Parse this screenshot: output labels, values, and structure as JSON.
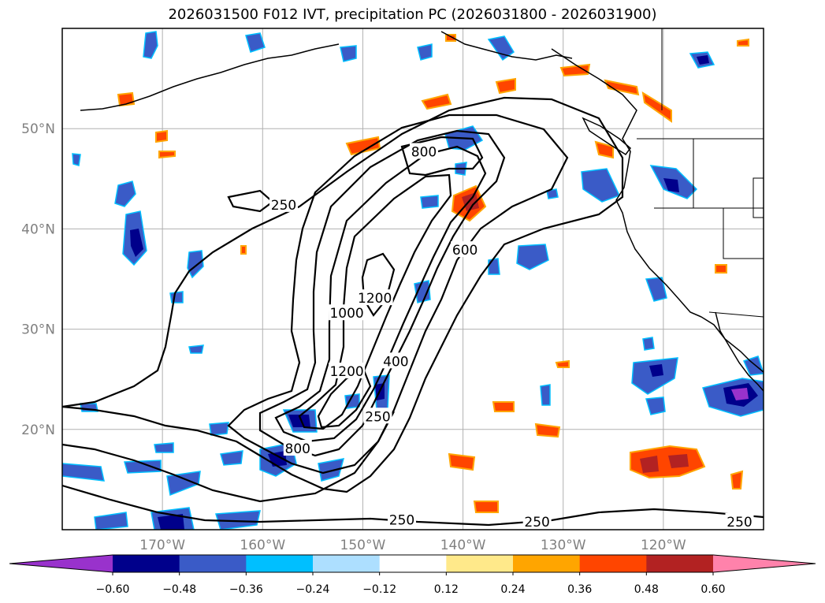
{
  "title": "2026031500 F012 IVT, precipitation PC (2026031800 - 2026031900)",
  "chart_data": {
    "type": "map",
    "title": "2026031500 F012 IVT, precipitation PC (2026031800 - 2026031900)",
    "lon_range": [
      -180,
      -110
    ],
    "lat_range": [
      10,
      60
    ],
    "lon_ticks": [
      {
        "value": -170,
        "label": "170°W"
      },
      {
        "value": -160,
        "label": "160°W"
      },
      {
        "value": -150,
        "label": "150°W"
      },
      {
        "value": -140,
        "label": "140°W"
      },
      {
        "value": -130,
        "label": "130°W"
      },
      {
        "value": -120,
        "label": "120°W"
      }
    ],
    "lat_ticks": [
      {
        "value": 20,
        "label": "20°N"
      },
      {
        "value": 30,
        "label": "30°N"
      },
      {
        "value": 40,
        "label": "40°N"
      },
      {
        "value": 50,
        "label": "50°N"
      }
    ],
    "grid": true,
    "ivt_contour_levels": [
      250,
      400,
      600,
      800,
      1000,
      1200
    ],
    "contour_labels": [
      {
        "text": "250",
        "lon": -157.9,
        "lat": 42.4
      },
      {
        "text": "1200",
        "lon": -148.8,
        "lat": 33.1
      },
      {
        "text": "1000",
        "lon": -151.6,
        "lat": 31.6
      },
      {
        "text": "600",
        "lon": -139.8,
        "lat": 37.9
      },
      {
        "text": "800",
        "lon": -143.9,
        "lat": 47.7
      },
      {
        "text": "1200",
        "lon": -151.6,
        "lat": 25.8
      },
      {
        "text": "400",
        "lon": -146.7,
        "lat": 26.8
      },
      {
        "text": "250",
        "lon": -148.5,
        "lat": 21.3
      },
      {
        "text": "800",
        "lon": -156.5,
        "lat": 18.1
      },
      {
        "text": "250",
        "lon": -146.1,
        "lat": 11.0
      },
      {
        "text": "250",
        "lon": -132.6,
        "lat": 10.8
      },
      {
        "text": "250",
        "lon": -112.4,
        "lat": 10.8
      }
    ],
    "colorbar": {
      "ticks": [
        "−0.60",
        "−0.48",
        "−0.36",
        "−0.24",
        "−0.12",
        "0.12",
        "0.24",
        "0.36",
        "0.48",
        "0.60"
      ],
      "colors": [
        "#9932CC",
        "#00008B",
        "#3A5BC7",
        "#00BFFF",
        "#ADDFFF",
        "#FFFFFF",
        "#FFE98A",
        "#FFA500",
        "#FF4500",
        "#B22222",
        "#FF82AB"
      ],
      "extend": "both"
    }
  }
}
